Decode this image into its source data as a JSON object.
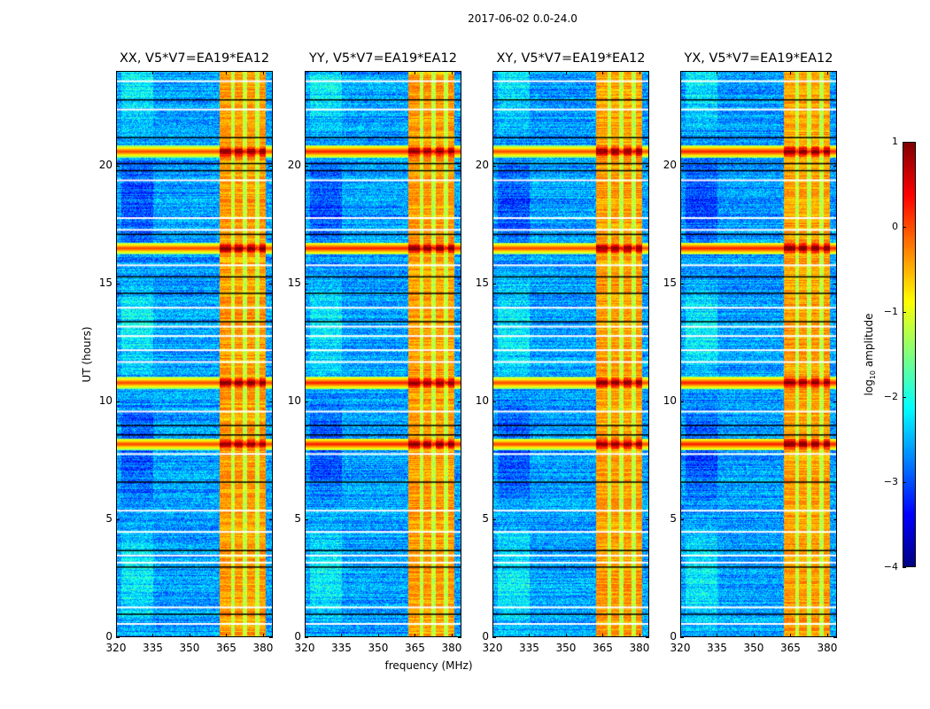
{
  "chart_data": {
    "type": "heatmap",
    "title": "2017-06-02 0.0-24.0",
    "xlabel": "frequency (MHz)",
    "ylabel": "UT (hours)",
    "xlim": [
      320,
      384
    ],
    "ylim": [
      0,
      24
    ],
    "xticks": [
      "320",
      "335",
      "350",
      "365",
      "380"
    ],
    "xtick_values": [
      320,
      335,
      350,
      365,
      380
    ],
    "yticks": [
      "0",
      "5",
      "10",
      "15",
      "20"
    ],
    "ytick_values": [
      0,
      5,
      10,
      15,
      20
    ],
    "panels": [
      {
        "title": "XX, V5*V7=EA19*EA12"
      },
      {
        "title": "YY, V5*V7=EA19*EA12"
      },
      {
        "title": "XY, V5*V7=EA19*EA12"
      },
      {
        "title": "YX, V5*V7=EA19*EA12"
      }
    ],
    "colorbar": {
      "label_prefix": "log",
      "label_sub": "10",
      "label_suffix": " amplitude",
      "colormap": "jet",
      "range": [
        -4,
        1
      ],
      "ticks": [
        "1",
        "0",
        "−1",
        "−2",
        "−3",
        "−4"
      ],
      "tick_values": [
        1,
        0,
        -1,
        -2,
        -3,
        -4
      ]
    },
    "features": {
      "background_log_amplitude": -2.6,
      "rfi_band_MHz": [
        362,
        381
      ],
      "rfi_band_log_amplitude": -0.4,
      "rfi_band_gaps_MHz": [
        367.5,
        372.5,
        377.5
      ],
      "strong_rfi_hours": [
        8.2,
        10.8,
        16.5,
        20.6
      ],
      "flagged_white_hours": [
        0.6,
        1.3,
        3.2,
        3.5,
        4.5,
        5.4,
        7.8,
        9.6,
        11.7,
        12.2,
        12.8,
        13.2,
        14.0,
        15.8,
        17.3,
        17.8,
        19.4,
        22.4,
        23.6
      ],
      "flagged_black_hours": [
        1.0,
        3.0,
        3.7,
        6.6,
        8.6,
        9.0,
        13.4,
        14.6,
        15.3,
        17.1,
        19.8,
        20.1,
        21.2,
        22.8
      ]
    }
  }
}
